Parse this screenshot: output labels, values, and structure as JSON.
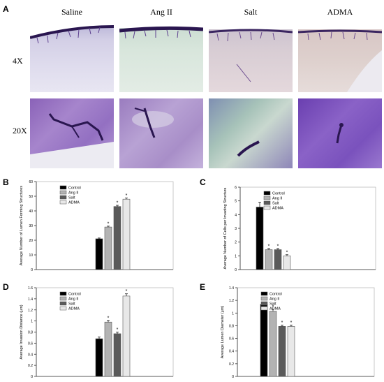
{
  "panels": {
    "A": "A",
    "B": "B",
    "C": "C",
    "D": "D",
    "E": "E"
  },
  "micrograph_grid": {
    "columns": [
      "Saline",
      "Ang II",
      "Salt",
      "ADMA"
    ],
    "rows": [
      "4X",
      "20X"
    ]
  },
  "colors": {
    "Control": "#000000",
    "Ang II": "#b3b3b3",
    "Salt": "#5a5a5a",
    "ADMA": "#e8e8e8",
    "stain_purple": "#7a4fb0",
    "stain_dark": "#2a1650"
  },
  "chart_data": [
    {
      "panel": "B",
      "type": "bar",
      "ylabel": "Average Number of Lumen Forming Structures",
      "ylim": [
        0,
        60
      ],
      "yticks": [
        0,
        10,
        20,
        30,
        40,
        50,
        60
      ],
      "series": [
        {
          "name": "Control",
          "value": 21,
          "error": 0.5,
          "sig": ""
        },
        {
          "name": "Ang II",
          "value": 29,
          "error": 0.6,
          "sig": "*"
        },
        {
          "name": "Salt",
          "value": 43,
          "error": 0.8,
          "sig": "*"
        },
        {
          "name": "ADMA",
          "value": 48,
          "error": 0.8,
          "sig": "*"
        }
      ],
      "legend": "top-left"
    },
    {
      "panel": "C",
      "type": "bar",
      "ylabel": "Average Number of Cells per Invading Structure",
      "ylim": [
        0,
        6
      ],
      "yticks": [
        0,
        1,
        2,
        3,
        4,
        5,
        6
      ],
      "series": [
        {
          "name": "Control",
          "value": 4.55,
          "error": 0.35,
          "sig": ""
        },
        {
          "name": "Ang II",
          "value": 1.45,
          "error": 0.08,
          "sig": "*"
        },
        {
          "name": "Salt",
          "value": 1.45,
          "error": 0.08,
          "sig": "*"
        },
        {
          "name": "ADMA",
          "value": 1.0,
          "error": 0.08,
          "sig": "*"
        }
      ],
      "legend": "top-left"
    },
    {
      "panel": "D",
      "type": "bar",
      "ylabel": "Average Invasion Distance (µm)",
      "ylim": [
        0,
        1.6
      ],
      "yticks": [
        0,
        0.2,
        0.4,
        0.6,
        0.8,
        1,
        1.2,
        1.4,
        1.6
      ],
      "series": [
        {
          "name": "Control",
          "value": 0.68,
          "error": 0.03,
          "sig": ""
        },
        {
          "name": "Ang II",
          "value": 0.98,
          "error": 0.03,
          "sig": "*"
        },
        {
          "name": "Salt",
          "value": 0.77,
          "error": 0.03,
          "sig": "*"
        },
        {
          "name": "ADMA",
          "value": 1.45,
          "error": 0.04,
          "sig": "*"
        }
      ],
      "legend": "top-left"
    },
    {
      "panel": "E",
      "type": "bar",
      "ylabel": "Average Lumen Diameter (µm)",
      "ylim": [
        0,
        1.4
      ],
      "yticks": [
        0,
        0.2,
        0.4,
        0.6,
        0.8,
        1,
        1.2,
        1.4
      ],
      "series": [
        {
          "name": "Control",
          "value": 1.14,
          "error": 0.03,
          "sig": ""
        },
        {
          "name": "Ang II",
          "value": 1.03,
          "error": 0.03,
          "sig": "*"
        },
        {
          "name": "Salt",
          "value": 0.79,
          "error": 0.02,
          "sig": "*"
        },
        {
          "name": "ADMA",
          "value": 0.79,
          "error": 0.02,
          "sig": "*"
        }
      ],
      "legend": "top-left"
    }
  ]
}
